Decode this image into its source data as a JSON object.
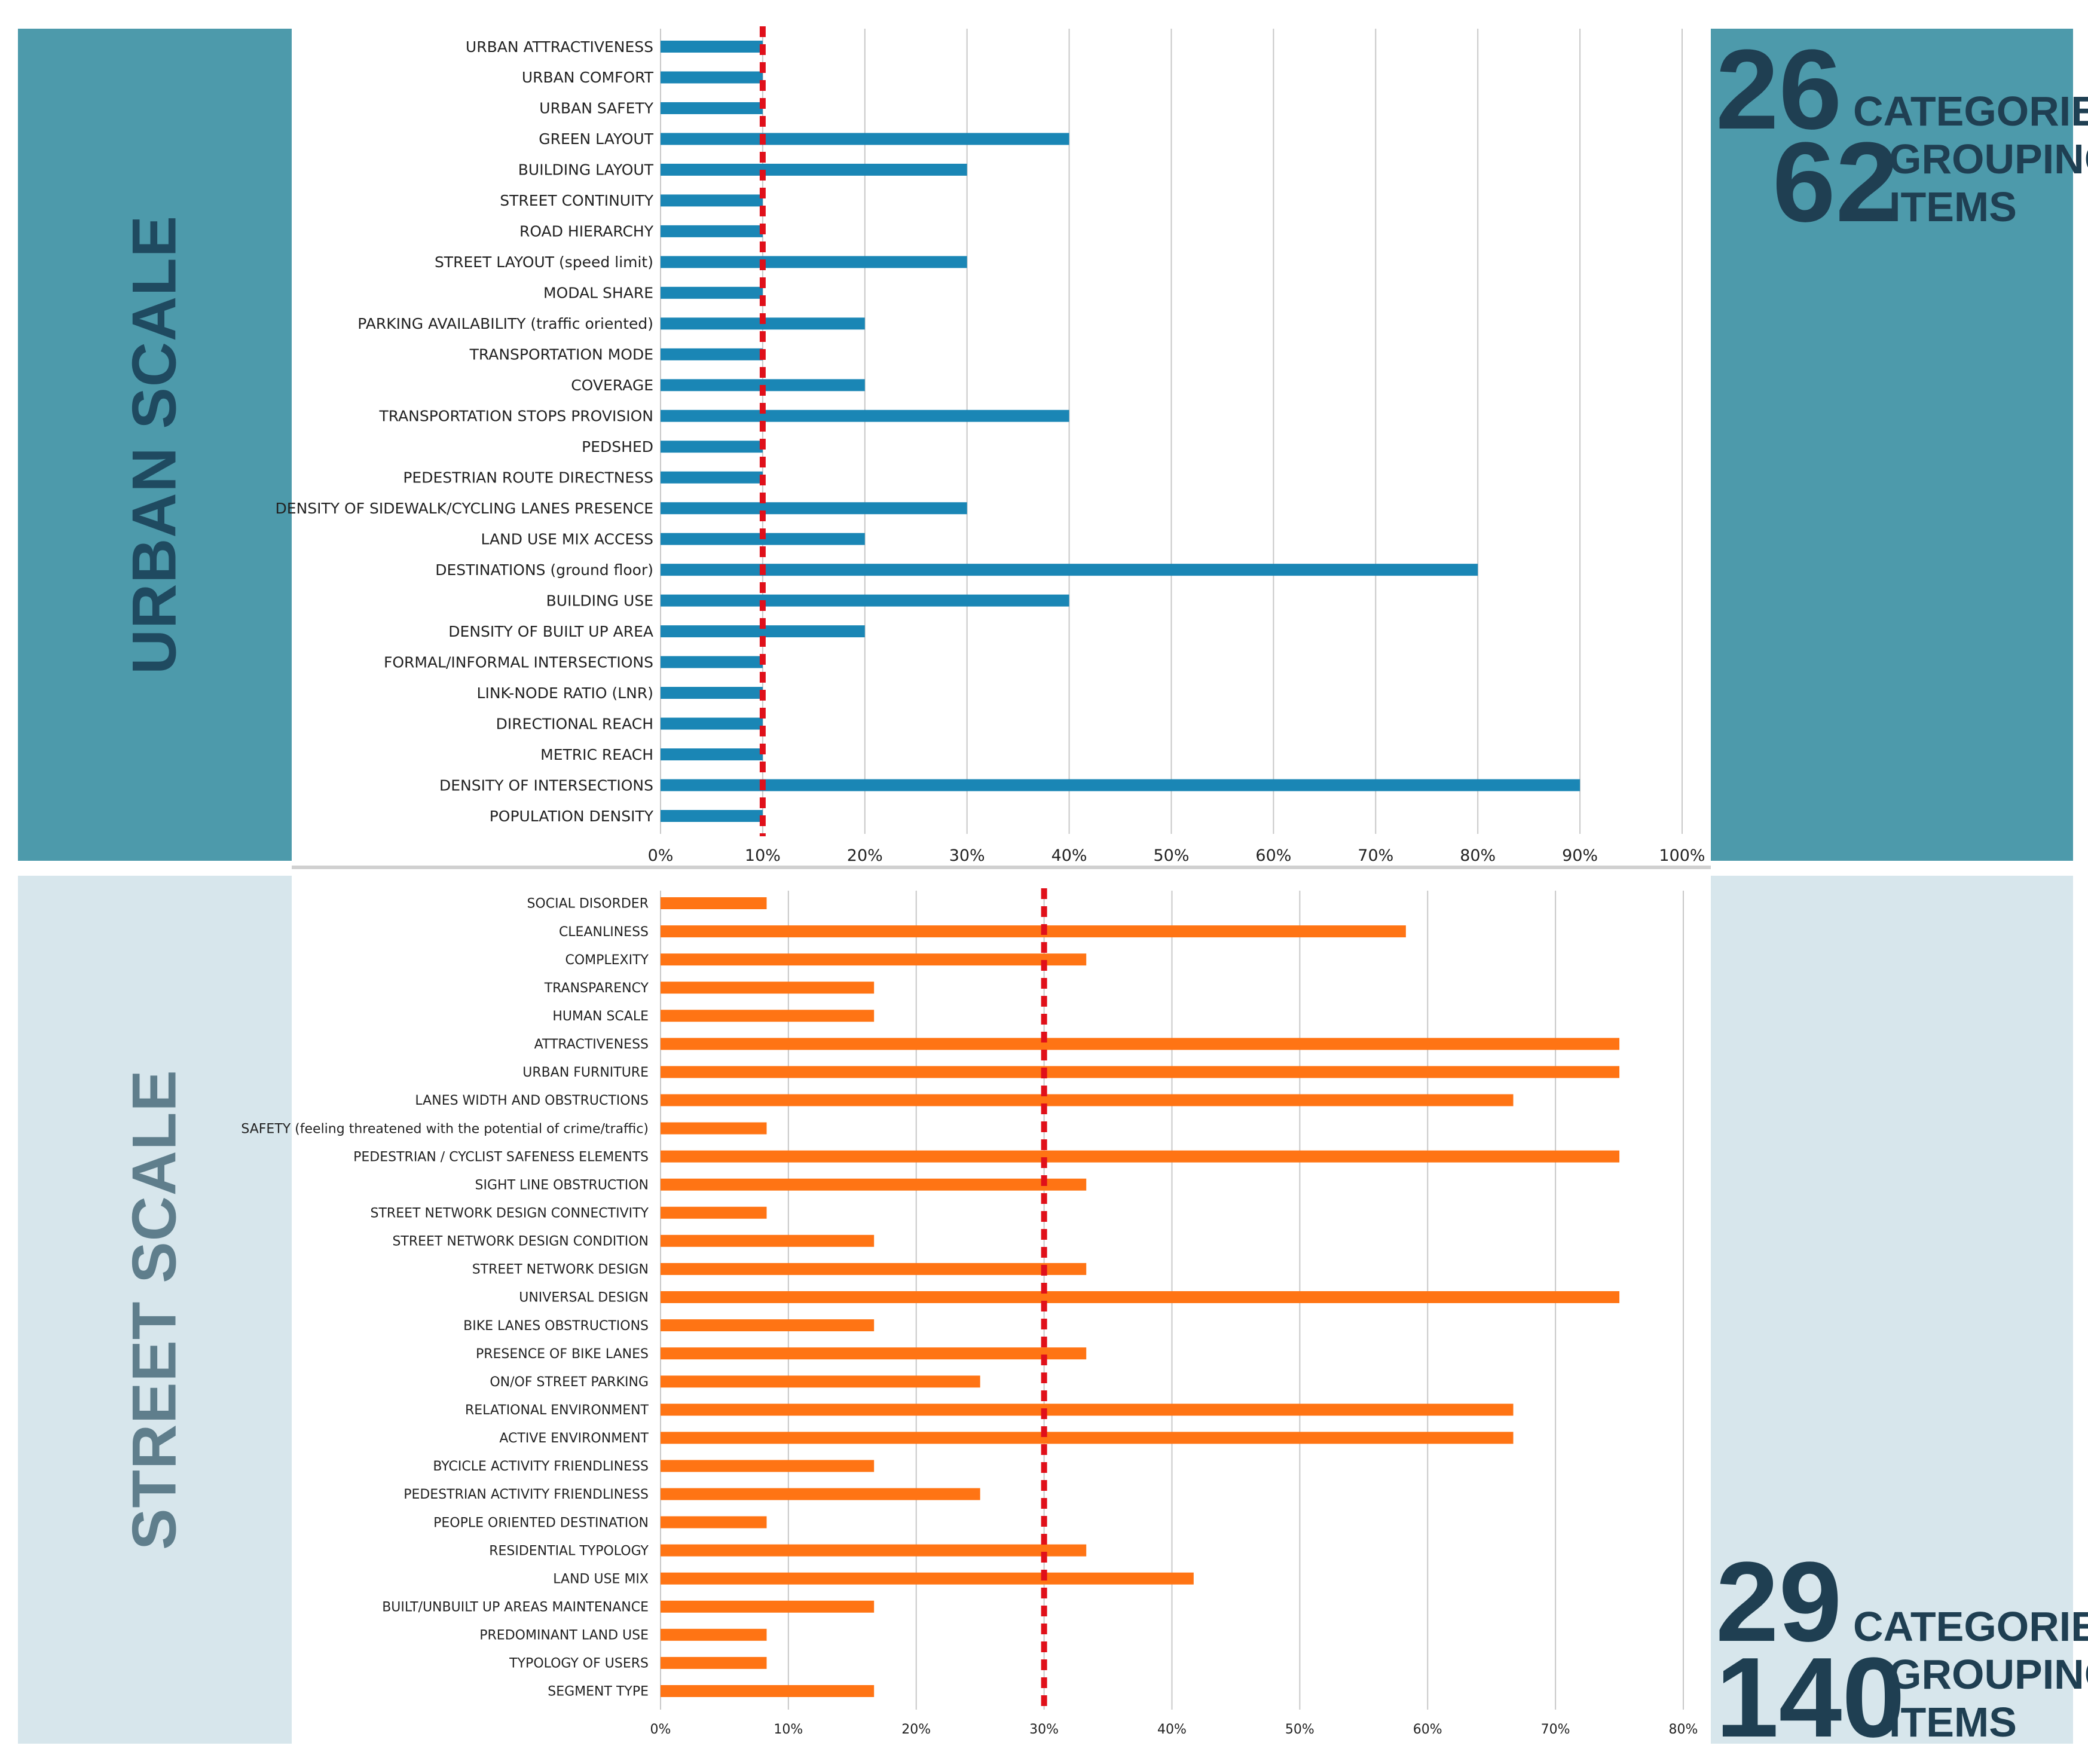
{
  "urban": {
    "title": "URBAN SCALE",
    "count_categories": "26",
    "label_categories": "CATEGORIES",
    "count_items": "62",
    "label_grouping": "GROUPING",
    "label_items": "ITEMS",
    "bar_color": "#1a86b5",
    "panel_color": "#4d9aab"
  },
  "street": {
    "title": "STREET SCALE",
    "count_categories": "29",
    "label_categories": "CATEGORIES",
    "count_items": "140",
    "label_grouping": "GROUPING",
    "label_items": "ITEMS",
    "bar_color": "#ff7414",
    "panel_color": "#d7e6ec"
  },
  "threshold_color": "#e0101a",
  "chart_data": [
    {
      "type": "bar",
      "orientation": "horizontal",
      "title": "URBAN SCALE",
      "categories": [
        "URBAN ATTRACTIVENESS",
        "URBAN COMFORT",
        "URBAN SAFETY",
        "GREEN LAYOUT",
        "BUILDING LAYOUT",
        "STREET CONTINUITY",
        "ROAD HIERARCHY",
        "STREET LAYOUT (speed limit)",
        "MODAL SHARE",
        "PARKING AVAILABILITY (traffic oriented)",
        "TRANSPORTATION MODE",
        "COVERAGE",
        "TRANSPORTATION STOPS PROVISION",
        "PEDSHED",
        "PEDESTRIAN ROUTE DIRECTNESS",
        "DENSITY OF SIDEWALK/CYCLING LANES PRESENCE",
        "LAND USE MIX ACCESS",
        "DESTINATIONS (ground floor)",
        "BUILDING USE",
        "DENSITY OF BUILT UP AREA",
        "FORMAL/INFORMAL INTERSECTIONS",
        "LINK-NODE RATIO (LNR)",
        "DIRECTIONAL REACH",
        "METRIC REACH",
        "DENSITY OF  INTERSECTIONS",
        "POPULATION DENSITY"
      ],
      "values": [
        10,
        10,
        10,
        40,
        30,
        10,
        10,
        30,
        10,
        20,
        10,
        20,
        40,
        10,
        10,
        30,
        20,
        80,
        40,
        20,
        10,
        10,
        10,
        10,
        90,
        10
      ],
      "xlim": [
        0,
        100
      ],
      "xticks": [
        "0%",
        "10%",
        "20%",
        "30%",
        "40%",
        "50%",
        "60%",
        "70%",
        "80%",
        "90%",
        "100%"
      ],
      "threshold": 10,
      "grid": true
    },
    {
      "type": "bar",
      "orientation": "horizontal",
      "title": "STREET SCALE",
      "categories": [
        "SOCIAL DISORDER",
        "CLEANLINESS",
        "COMPLEXITY",
        "TRANSPARENCY",
        "HUMAN SCALE",
        "ATTRACTIVENESS",
        "URBAN FURNITURE",
        "LANES WIDTH AND OBSTRUCTIONS",
        "SAFETY (feeling threatened with the potential of crime/traffic)",
        "PEDESTRIAN / CYCLIST SAFENESS ELEMENTS",
        "SIGHT LINE OBSTRUCTION",
        "STREET NETWORK DESIGN CONNECTIVITY",
        "STREET NETWORK DESIGN CONDITION",
        "STREET NETWORK DESIGN",
        "UNIVERSAL DESIGN",
        "BIKE LANES OBSTRUCTIONS",
        "PRESENCE OF BIKE LANES",
        "ON/OF STREET PARKING",
        "RELATIONAL ENVIRONMENT",
        "ACTIVE ENVIRONMENT",
        "BYCICLE ACTIVITY FRIENDLINESS",
        "PEDESTRIAN ACTIVITY FRIENDLINESS",
        "PEOPLE ORIENTED DESTINATION",
        "RESIDENTIAL TYPOLOGY",
        "LAND USE MIX",
        "BUILT/UNBUILT UP AREAS MAINTENANCE",
        "PREDOMINANT LAND USE",
        "TYPOLOGY OF USERS",
        "SEGMENT TYPE"
      ],
      "values": [
        8.3,
        58.3,
        33.3,
        16.7,
        16.7,
        75,
        75,
        66.7,
        8.3,
        75,
        33.3,
        8.3,
        16.7,
        33.3,
        75,
        16.7,
        33.3,
        25,
        66.7,
        66.7,
        16.7,
        25,
        8.3,
        33.3,
        41.7,
        16.7,
        8.3,
        8.3,
        16.7
      ],
      "xlim": [
        0,
        80
      ],
      "xticks": [
        "0%",
        "10%",
        "20%",
        "30%",
        "40%",
        "50%",
        "60%",
        "70%",
        "80%"
      ],
      "threshold": 30,
      "grid": true
    }
  ]
}
